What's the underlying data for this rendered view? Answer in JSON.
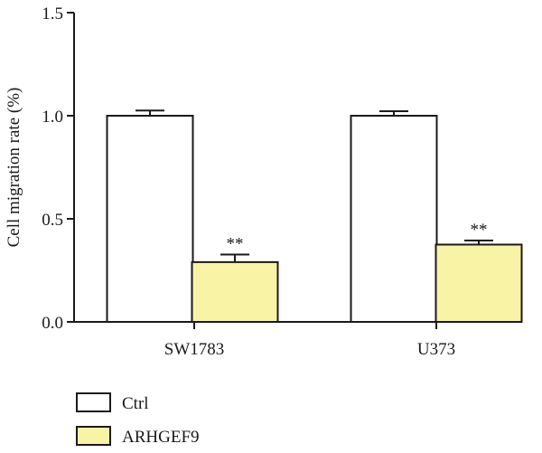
{
  "chart_data": {
    "type": "bar",
    "title": "",
    "xlabel": "",
    "ylabel": "Cell migration rate (%)",
    "ylim": [
      0,
      1.5
    ],
    "yticks": [
      "0.0",
      "0.5",
      "1.0",
      "1.5"
    ],
    "categories": [
      "SW1783",
      "U373"
    ],
    "series": [
      {
        "name": "Ctrl",
        "color": "#ffffff",
        "values": [
          1.0,
          1.0
        ],
        "errors": [
          0.025,
          0.022
        ],
        "significance": [
          "",
          ""
        ]
      },
      {
        "name": "ARHGEF9",
        "color": "#f8f3a5",
        "values": [
          0.29,
          0.375
        ],
        "errors": [
          0.037,
          0.02
        ],
        "significance": [
          "**",
          "**"
        ]
      }
    ],
    "legend_position": "bottom-left",
    "grid": false
  }
}
